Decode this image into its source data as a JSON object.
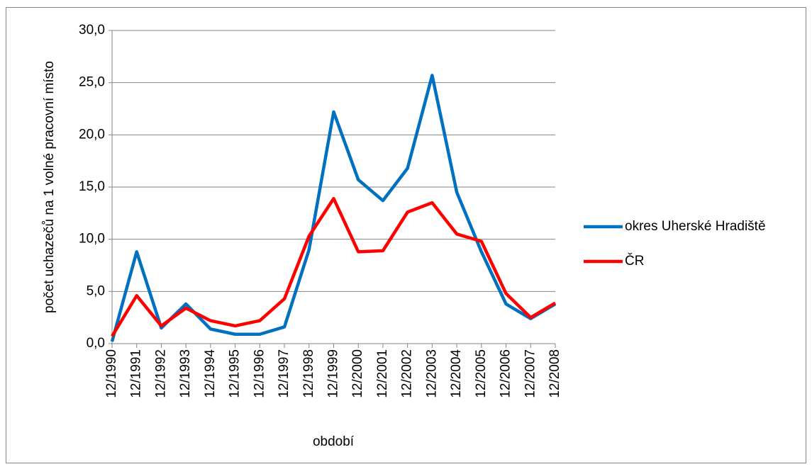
{
  "chart_data": {
    "type": "line",
    "y_label": "počet uchazečů  na 1 volné pracovní místo",
    "x_label": "období",
    "categories": [
      "12/1990",
      "12/1991",
      "12/1992",
      "12/1993",
      "12/1994",
      "12/1995",
      "12/1996",
      "12/1997",
      "12/1998",
      "12/1999",
      "12/2000",
      "12/2001",
      "12/2002",
      "12/2003",
      "12/2004",
      "12/2005",
      "12/2006",
      "12/2007",
      "12/2008"
    ],
    "series": [
      {
        "name": "okres Uherské Hradiště",
        "color": "#0070c0",
        "values": [
          0.2,
          8.8,
          1.5,
          3.8,
          1.4,
          0.9,
          0.9,
          1.6,
          9.0,
          22.2,
          15.7,
          13.7,
          16.8,
          25.7,
          14.5,
          8.8,
          3.8,
          2.4,
          3.8
        ]
      },
      {
        "name": "ČR",
        "color": "#ff0000",
        "values": [
          0.7,
          4.6,
          1.7,
          3.4,
          2.2,
          1.7,
          2.2,
          4.3,
          10.3,
          13.9,
          8.8,
          8.9,
          12.6,
          13.5,
          10.5,
          9.8,
          4.8,
          2.5,
          3.9
        ]
      }
    ],
    "ylim": [
      0,
      30
    ],
    "yticks": [
      {
        "value": 0,
        "label": "0,0"
      },
      {
        "value": 5,
        "label": "5,0"
      },
      {
        "value": 10,
        "label": "10,0"
      },
      {
        "value": 15,
        "label": "15,0"
      },
      {
        "value": 20,
        "label": "20,0"
      },
      {
        "value": 25,
        "label": "25,0"
      },
      {
        "value": 30,
        "label": "30,0"
      }
    ],
    "grid": true,
    "legend": "right"
  }
}
